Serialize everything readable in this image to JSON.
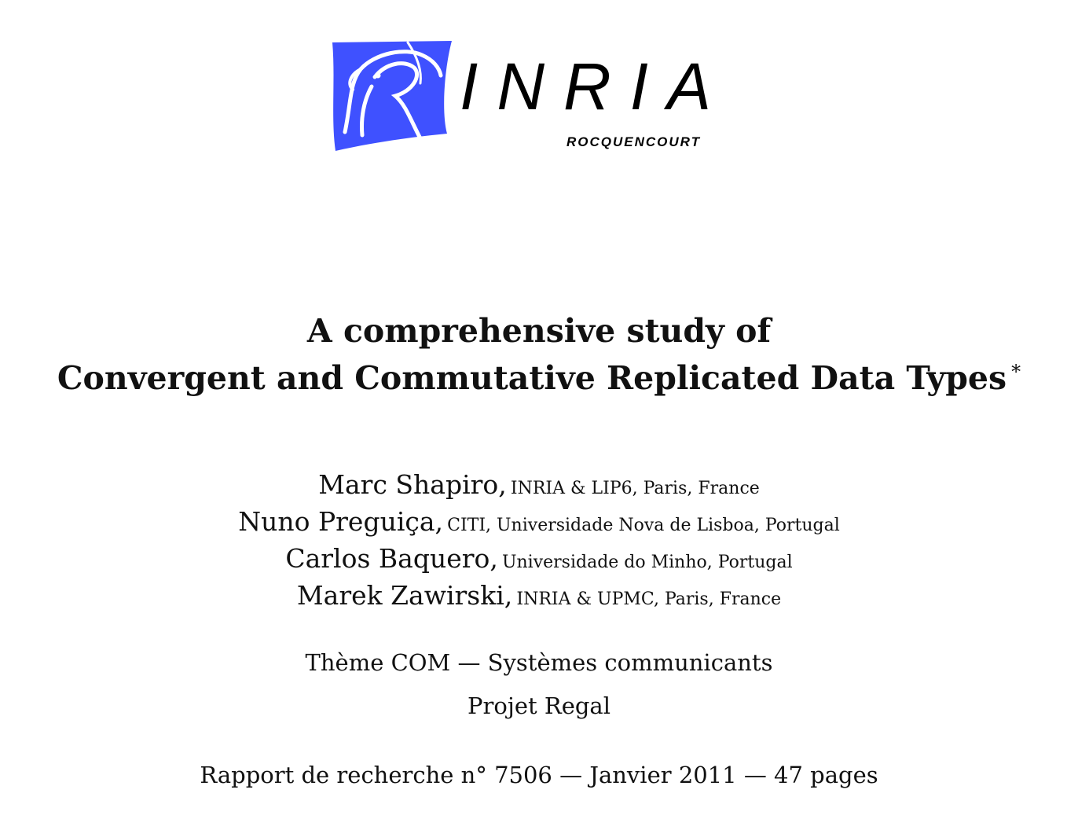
{
  "logo": {
    "name": "INRIA",
    "subtitle": "ROCQUENCOURT",
    "brand_color": "#3f51ff"
  },
  "title": {
    "line1": "A comprehensive study of",
    "line2": "Convergent and Commutative Replicated Data Types",
    "footnote_mark": "*"
  },
  "authors": [
    {
      "name": "Marc Shapiro,",
      "affiliation": "INRIA & LIP6, Paris, France"
    },
    {
      "name": "Nuno Preguiça,",
      "affiliation": "CITI, Universidade Nova de Lisboa, Portugal"
    },
    {
      "name": "Carlos Baquero,",
      "affiliation": "Universidade do Minho, Portugal"
    },
    {
      "name": "Marek Zawirski,",
      "affiliation": "INRIA & UPMC, Paris, France"
    }
  ],
  "theme": "Thème COM — Systèmes communicants",
  "project": "Projet Regal",
  "report": "Rapport de recherche  n° 7506 — Janvier 2011 — 47 pages"
}
